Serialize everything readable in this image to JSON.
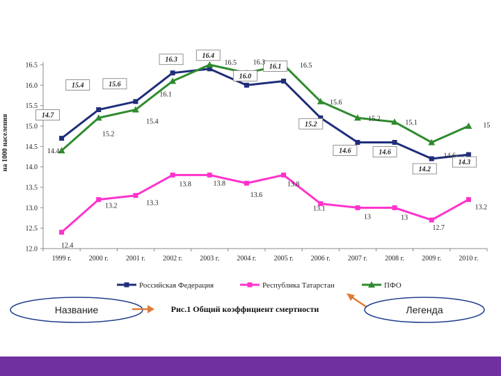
{
  "chart_data": {
    "type": "line",
    "title": "",
    "ylabel": "на 1000 населения",
    "xlabel": "",
    "ylim": [
      12.0,
      16.5
    ],
    "yticks": [
      "12.0",
      "12.5",
      "13.0",
      "13.5",
      "14.0",
      "14.5",
      "15.0",
      "15.5",
      "16.0",
      "16.5"
    ],
    "categories": [
      "1999 г.",
      "2000 г.",
      "2001 г.",
      "2002 г.",
      "2003 г.",
      "2004 г.",
      "2005 г.",
      "2006 г.",
      "2007 г.",
      "2008 г.",
      "2009 г.",
      "2010 г."
    ],
    "series": [
      {
        "name": "Российская Федерация",
        "color": "#1f2d7a",
        "marker": "square",
        "values": [
          14.7,
          15.4,
          15.6,
          16.3,
          16.4,
          16.0,
          16.1,
          15.2,
          14.6,
          14.6,
          14.2,
          14.3
        ],
        "labels": [
          "14.7",
          "15.4",
          "15.6",
          "16.3",
          "16.4",
          "16.0",
          "16.1",
          "15.2",
          "14.6",
          "14.6",
          "14.2",
          "14.3"
        ]
      },
      {
        "name": "Республика Татарстан",
        "color": "#ff33cc",
        "marker": "square",
        "values": [
          12.4,
          13.2,
          13.3,
          13.8,
          13.8,
          13.6,
          13.8,
          13.1,
          13.0,
          13.0,
          12.7,
          13.2
        ],
        "labels": [
          "12.4",
          "13.2",
          "13.3",
          "13.8",
          "13.8",
          "13.6",
          "13.8",
          "13.1",
          "13",
          "13",
          "12.7",
          "13.2"
        ]
      },
      {
        "name": "ПФО",
        "color": "#2e8b2e",
        "marker": "triangle",
        "values": [
          14.4,
          15.2,
          15.4,
          16.1,
          16.5,
          16.3,
          16.5,
          15.6,
          15.2,
          15.1,
          14.6,
          15.0
        ],
        "labels": [
          "14.4",
          "15.2",
          "15.4",
          "16.1",
          "16.5",
          "16.3",
          "16.5",
          "15.6",
          "15.2",
          "15.1",
          "14.6",
          "15"
        ]
      }
    ],
    "legend_position": "bottom",
    "caption": "Рис.1 Общий коэффициент смертности",
    "annotations": {
      "left_ellipse": "Название",
      "right_ellipse": "Легенда"
    }
  },
  "colors": {
    "arrow": "#e07b39",
    "footer": "#7030a0"
  }
}
